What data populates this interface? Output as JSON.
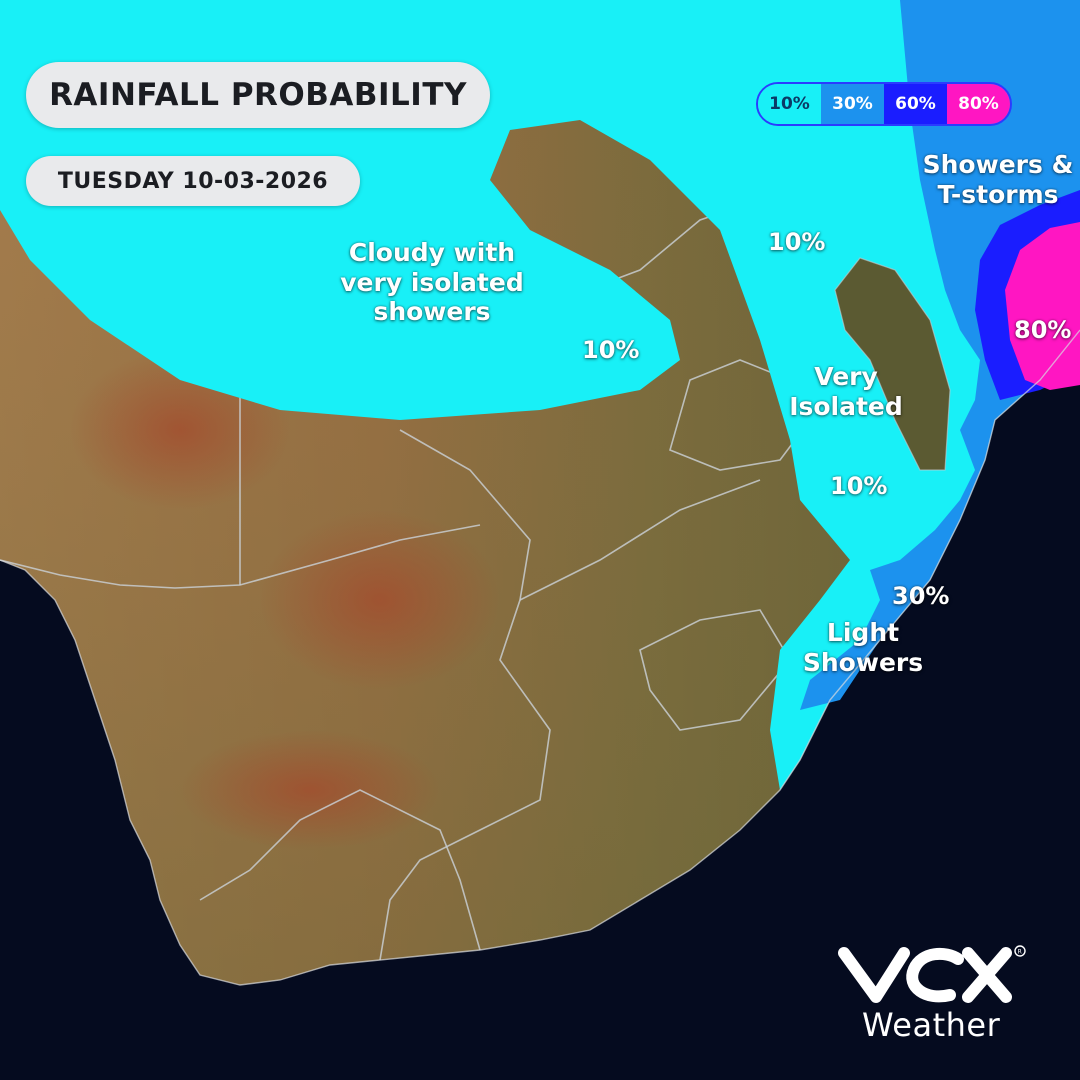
{
  "header": {
    "title": "RAINFALL PROBABILITY",
    "date": "TUESDAY 10-03-2026"
  },
  "legend": [
    {
      "label": "10%",
      "color": "#18f0f7"
    },
    {
      "label": "30%",
      "color": "#1c92ee"
    },
    {
      "label": "60%",
      "color": "#1a1dff"
    },
    {
      "label": "80%",
      "color": "#ff16c2"
    }
  ],
  "map_labels": {
    "cloudy_line1": "Cloudy with",
    "cloudy_line2": "very isolated",
    "cloudy_line3": "showers",
    "pct_10_a": "10%",
    "pct_10_b": "10%",
    "pct_10_c": "10%",
    "very_line1": "Very",
    "very_line2": "Isolated",
    "storms_line1": "Showers &",
    "storms_line2": "T-storms",
    "pct_80": "80%",
    "pct_30": "30%",
    "light_line1": "Light",
    "light_line2": "Showers"
  },
  "colors": {
    "ocean": "#050b1f",
    "land_dark": "#5f5a34",
    "land_arid": "#a37a48",
    "land_red": "#9c4a2e",
    "borders": "#c8ccd0"
  },
  "brand": {
    "wordmark": "Weather",
    "logo_icon": "vox-logo-icon"
  }
}
